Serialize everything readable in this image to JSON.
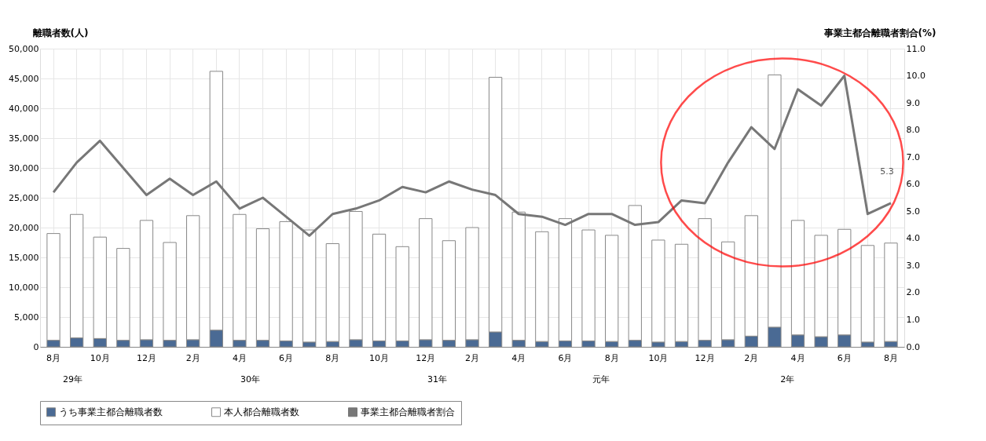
{
  "chart_data": {
    "type": "bar",
    "stacked": true,
    "ylabel": "離職者数(人)",
    "y2label": "事業主都合離職者割合(%)",
    "categories": [
      "8月",
      null,
      "10月",
      null,
      "12月",
      null,
      "2月",
      null,
      "4月",
      null,
      "6月",
      null,
      "8月",
      null,
      "10月",
      null,
      "12月",
      null,
      "2月",
      null,
      "4月",
      null,
      "6月",
      null,
      "8月",
      null,
      "10月",
      null,
      "12月",
      null,
      "2月",
      null,
      "4月",
      null,
      "6月",
      null,
      "8月"
    ],
    "ylim": [
      0,
      50000
    ],
    "yticks": [
      0,
      {
        "value": 5000,
        "label": "5,000"
      },
      {
        "value": 10000,
        "label": "10,000"
      },
      {
        "value": 15000,
        "label": "15,000"
      },
      {
        "value": 20000,
        "label": "20,000"
      },
      {
        "value": 25000,
        "label": "25,000"
      },
      {
        "value": 30000,
        "label": "30,000"
      },
      {
        "value": 35000,
        "label": "35,000"
      },
      {
        "value": 40000,
        "label": "40,000"
      },
      {
        "value": 45000,
        "label": "45,000"
      },
      {
        "value": 50000,
        "label": "50,000"
      }
    ],
    "y2lim": [
      0,
      11
    ],
    "y2ticks": [
      {
        "value": 0,
        "label": "0.0"
      },
      {
        "value": 1,
        "label": "1.0"
      },
      {
        "value": 2,
        "label": "2.0"
      },
      {
        "value": 3,
        "label": "3.0"
      },
      {
        "value": 4,
        "label": "4.0"
      },
      {
        "value": 5,
        "label": "5.0"
      },
      {
        "value": 6,
        "label": "6.0"
      },
      {
        "value": 7,
        "label": "7.0"
      },
      {
        "value": 8,
        "label": "8.0"
      },
      {
        "value": 9,
        "label": "9.0"
      },
      {
        "value": 10,
        "label": "10.0"
      },
      {
        "value": 11,
        "label": "11.0"
      }
    ],
    "series": [
      {
        "name": "うち事業主都合離職者数",
        "color": "#4a6a94",
        "values": [
          1100,
          1500,
          1400,
          1100,
          1200,
          1100,
          1200,
          2800,
          1100,
          1100,
          1000,
          800,
          900,
          1200,
          1000,
          1000,
          1200,
          1100,
          1200,
          2500,
          1100,
          900,
          1000,
          1000,
          900,
          1100,
          800,
          900,
          1100,
          1200,
          1800,
          3300,
          2000,
          1700,
          2000,
          800,
          900
        ]
      },
      {
        "name": "本人都合離職者数",
        "color": "#ffffff",
        "values": [
          17900,
          20700,
          17000,
          15400,
          20000,
          16400,
          20800,
          43400,
          21100,
          18700,
          20000,
          18800,
          16400,
          21500,
          17900,
          15800,
          20300,
          16700,
          18800,
          42700,
          21500,
          18400,
          20500,
          18600,
          17800,
          22600,
          17100,
          16300,
          20400,
          16400,
          20200,
          42300,
          19200,
          17000,
          17700,
          16200,
          16500
        ]
      },
      {
        "name": "事業主都合離職者割合",
        "type": "line",
        "axis": "y2",
        "color": "#777777",
        "values": [
          5.7,
          6.8,
          7.6,
          6.6,
          5.6,
          6.2,
          5.6,
          6.1,
          5.1,
          5.5,
          4.8,
          4.1,
          4.9,
          5.1,
          5.4,
          5.9,
          5.7,
          6.1,
          5.8,
          5.6,
          4.9,
          4.8,
          4.5,
          4.9,
          4.9,
          4.5,
          4.6,
          5.4,
          5.3,
          6.8,
          8.1,
          7.3,
          9.5,
          8.9,
          10.0,
          4.9,
          5.3
        ],
        "value_labels": [
          null,
          null,
          null,
          null,
          null,
          null,
          null,
          null,
          null,
          null,
          null,
          null,
          null,
          null,
          null,
          null,
          null,
          null,
          null,
          null,
          null,
          null,
          null,
          null,
          null,
          null,
          null,
          null,
          null,
          null,
          null,
          null,
          null,
          null,
          null,
          null,
          "5.3"
        ]
      }
    ],
    "annotations": [
      "29年",
      "30年",
      "31年",
      "元年",
      "2年"
    ],
    "grid": true,
    "legend": "bottom"
  }
}
